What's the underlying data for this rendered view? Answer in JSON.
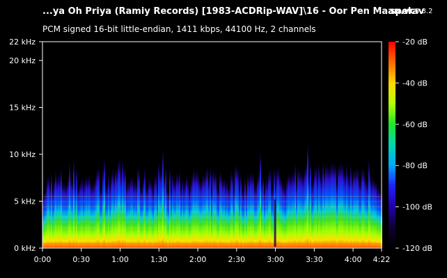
{
  "header": {
    "file_title": "...ya Oh Priya (Ramiy Records) [1983-ACDRip-WAV]\\16 - Oor Pen Maan.wav",
    "app_name": "spek",
    "app_version": "0.8.2",
    "stream_info": "PCM signed 16-bit little-endian, 1411 kbps, 44100 Hz, 2 channels"
  },
  "frequency_axis": {
    "unit": "kHz",
    "max": 22,
    "ticks": [
      {
        "value": 0,
        "label": "0 kHz"
      },
      {
        "value": 5,
        "label": "5 kHz"
      },
      {
        "value": 10,
        "label": "10 kHz"
      },
      {
        "value": 15,
        "label": "15 kHz"
      },
      {
        "value": 20,
        "label": "20 kHz"
      },
      {
        "value": 22,
        "label": "22 kHz"
      }
    ]
  },
  "time_axis": {
    "duration_seconds": 262,
    "ticks": [
      {
        "value": 0,
        "label": "0:00"
      },
      {
        "value": 30,
        "label": "0:30"
      },
      {
        "value": 60,
        "label": "1:00"
      },
      {
        "value": 90,
        "label": "1:30"
      },
      {
        "value": 120,
        "label": "2:00"
      },
      {
        "value": 150,
        "label": "2:30"
      },
      {
        "value": 180,
        "label": "3:00"
      },
      {
        "value": 210,
        "label": "3:30"
      },
      {
        "value": 240,
        "label": "4:00"
      },
      {
        "value": 262,
        "label": "4:22"
      }
    ]
  },
  "level_scale": {
    "unit": "dB",
    "ticks": [
      {
        "value": -20,
        "label": "-20 dB"
      },
      {
        "value": -40,
        "label": "-40 dB"
      },
      {
        "value": -60,
        "label": "-60 dB"
      },
      {
        "value": -80,
        "label": "-80 dB"
      },
      {
        "value": -100,
        "label": "-100 dB"
      },
      {
        "value": -120,
        "label": "-120 dB"
      }
    ],
    "gradient_colors": [
      "#ff0000",
      "#ff6a00",
      "#ffd800",
      "#b8ff00",
      "#1fe62b",
      "#00d8b0",
      "#00a8ff",
      "#2020ff",
      "#2000a8",
      "#100030",
      "#000000"
    ]
  },
  "colors": {
    "background": "#000000",
    "text": "#ffffff",
    "frame": "#ffffff"
  }
}
